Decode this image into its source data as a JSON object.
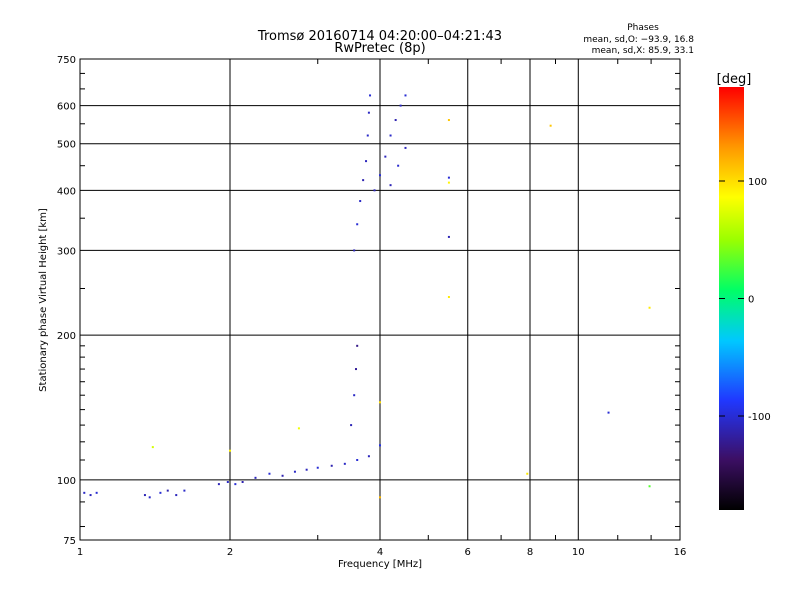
{
  "chart_data": {
    "type": "scatter",
    "title": "Tromsø 20160714 04:20:00–04:21:43",
    "subtitle": "RwPretec (8p)",
    "xlabel": "Frequency [MHz]",
    "ylabel": "Stationary phase Virtual Height [km]",
    "x_scale": "log",
    "y_scale": "log",
    "xlim": [
      1,
      16
    ],
    "ylim": [
      75,
      750
    ],
    "x_ticks": [
      1,
      2,
      4,
      6,
      8,
      10,
      16
    ],
    "y_ticks": [
      75,
      100,
      200,
      300,
      400,
      500,
      600,
      750
    ],
    "grid": true,
    "phases": {
      "header": "Phases",
      "o_line": "mean, sd,O:  −93.9, 16.8",
      "x_line": "mean, sd,X:  85.9, 33.1"
    },
    "colorbar": {
      "unit": "[deg]",
      "range": [
        -180,
        180
      ],
      "ticks": [
        100,
        0,
        -100
      ]
    },
    "series": [
      {
        "points": [
          [
            1.02,
            94,
            -105
          ],
          [
            1.05,
            93,
            -108
          ],
          [
            1.08,
            94,
            -100
          ],
          [
            1.35,
            93,
            -110
          ],
          [
            1.38,
            92,
            -105
          ],
          [
            1.45,
            94,
            -100
          ],
          [
            1.5,
            95,
            -112
          ],
          [
            1.56,
            93,
            -108
          ],
          [
            1.62,
            95,
            -104
          ],
          [
            1.9,
            98,
            -110
          ],
          [
            1.98,
            99,
            -105
          ],
          [
            2.05,
            98,
            -100
          ],
          [
            2.12,
            99,
            -112
          ],
          [
            2.25,
            101,
            -108
          ],
          [
            2.4,
            103,
            -100
          ],
          [
            2.55,
            102,
            -112
          ],
          [
            2.7,
            104,
            -105
          ],
          [
            2.85,
            105,
            -108
          ],
          [
            3.0,
            106,
            -100
          ],
          [
            3.2,
            107,
            -112
          ],
          [
            3.4,
            108,
            -105
          ],
          [
            3.6,
            110,
            -100
          ],
          [
            3.8,
            112,
            -108
          ],
          [
            4.0,
            118,
            -95
          ],
          [
            3.5,
            130,
            -110
          ],
          [
            3.55,
            150,
            -105
          ],
          [
            3.58,
            170,
            -120
          ],
          [
            3.6,
            190,
            -125
          ],
          [
            3.55,
            300,
            -110
          ],
          [
            3.6,
            340,
            -100
          ],
          [
            3.65,
            380,
            -105
          ],
          [
            3.7,
            420,
            -112
          ],
          [
            3.75,
            460,
            -108
          ],
          [
            3.78,
            520,
            -104
          ],
          [
            3.8,
            580,
            -106
          ],
          [
            3.82,
            630,
            -100
          ],
          [
            3.9,
            400,
            -110
          ],
          [
            4.0,
            430,
            -100
          ],
          [
            4.1,
            470,
            -108
          ],
          [
            4.2,
            520,
            -104
          ],
          [
            4.3,
            560,
            -112
          ],
          [
            4.4,
            600,
            -106
          ],
          [
            4.5,
            630,
            -100
          ],
          [
            4.2,
            410,
            -110
          ],
          [
            4.35,
            450,
            -102
          ],
          [
            4.5,
            490,
            -108
          ]
        ]
      }
    ],
    "outliers": [
      [
        1.4,
        117,
        70
      ],
      [
        2.0,
        115,
        90
      ],
      [
        2.75,
        128,
        80
      ],
      [
        4.0,
        92,
        115
      ],
      [
        4.0,
        145,
        100
      ],
      [
        5.5,
        560,
        110
      ],
      [
        5.5,
        415,
        90
      ],
      [
        5.5,
        425,
        -100
      ],
      [
        5.5,
        320,
        -110
      ],
      [
        5.5,
        240,
        95
      ],
      [
        7.9,
        103,
        95
      ],
      [
        8.8,
        545,
        110
      ],
      [
        11.5,
        138,
        -100
      ],
      [
        13.9,
        228,
        95
      ],
      [
        13.9,
        97,
        30
      ]
    ]
  }
}
